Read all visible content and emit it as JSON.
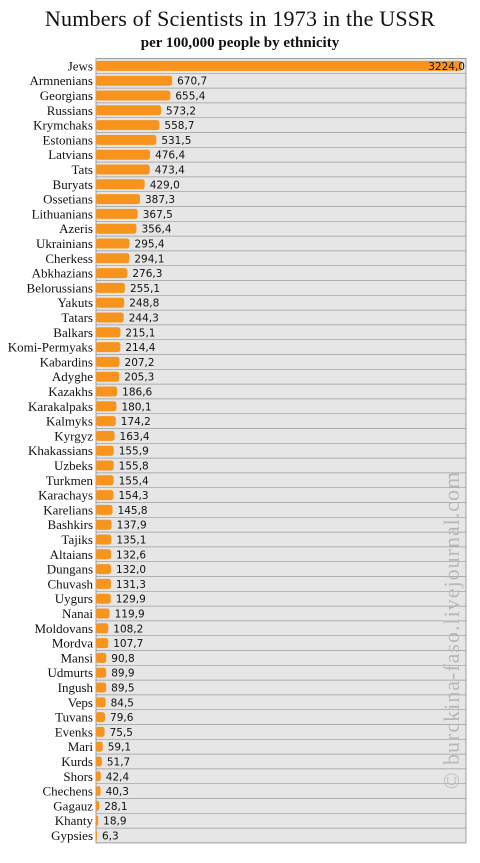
{
  "chart_data": {
    "type": "bar",
    "orientation": "horizontal",
    "title": "Numbers of Scientists in 1973 in the USSR",
    "subtitle": "per 100,000 people by ethnicity",
    "categories": [
      "Jews",
      "Armnenians",
      "Georgians",
      "Russians",
      "Krymchaks",
      "Estonians",
      "Latvians",
      "Tats",
      "Buryats",
      "Ossetians",
      "Lithuanians",
      "Azeris",
      "Ukrainians",
      "Cherkess",
      "Abkhazians",
      "Belorussians",
      "Yakuts",
      "Tatars",
      "Balkars",
      "Komi-Permyaks",
      "Kabardins",
      "Adyghe",
      "Kazakhs",
      "Karakalpaks",
      "Kalmyks",
      "Kyrgyz",
      "Khakassians",
      "Uzbeks",
      "Turkmen",
      "Karachays",
      "Karelians",
      "Bashkirs",
      "Tajiks",
      "Altaians",
      "Dungans",
      "Chuvash",
      "Uygurs",
      "Nanai",
      "Moldovans",
      "Mordva",
      "Mansi",
      "Udmurts",
      "Ingush",
      "Veps",
      "Tuvans",
      "Evenks",
      "Mari",
      "Kurds",
      "Shors",
      "Chechens",
      "Gagauz",
      "Khanty",
      "Gypsies"
    ],
    "values": [
      3224.0,
      670.7,
      655.4,
      573.2,
      558.7,
      531.5,
      476.4,
      473.4,
      429.0,
      387.3,
      367.5,
      356.4,
      295.4,
      294.1,
      276.3,
      255.1,
      248.8,
      244.3,
      215.1,
      214.4,
      207.2,
      205.3,
      186.6,
      180.1,
      174.2,
      163.4,
      155.9,
      155.8,
      155.4,
      154.3,
      145.8,
      137.9,
      135.1,
      132.6,
      132.0,
      131.3,
      129.9,
      119.9,
      108.2,
      107.7,
      90.8,
      89.9,
      89.5,
      84.5,
      79.6,
      75.5,
      59.1,
      51.7,
      42.4,
      40.3,
      28.1,
      18.9,
      6.3
    ],
    "value_labels": [
      "3224,0",
      "670,7",
      "655,4",
      "573,2",
      "558,7",
      "531,5",
      "476,4",
      "473,4",
      "429,0",
      "387,3",
      "367,5",
      "356,4",
      "295,4",
      "294,1",
      "276,3",
      "255,1",
      "248,8",
      "244,3",
      "215,1",
      "214,4",
      "207,2",
      "205,3",
      "186,6",
      "180,1",
      "174,2",
      "163,4",
      "155,9",
      "155,8",
      "155,4",
      "154,3",
      "145,8",
      "137,9",
      "135,1",
      "132,6",
      "132,0",
      "131,3",
      "129,9",
      "119,9",
      "108,2",
      "107,7",
      "90,8",
      "89,9",
      "89,5",
      "84,5",
      "79,6",
      "75,5",
      "59,1",
      "51,7",
      "42,4",
      "40,3",
      "28,1",
      "18,9",
      "6,3"
    ],
    "xlim": [
      0,
      3260
    ],
    "grid": true,
    "bar_color": "#f7941d",
    "plot_background": "#e6e6e6",
    "gridline_color": "#9a9a9a"
  },
  "watermark": "© burckina-faso.livejournal.com"
}
